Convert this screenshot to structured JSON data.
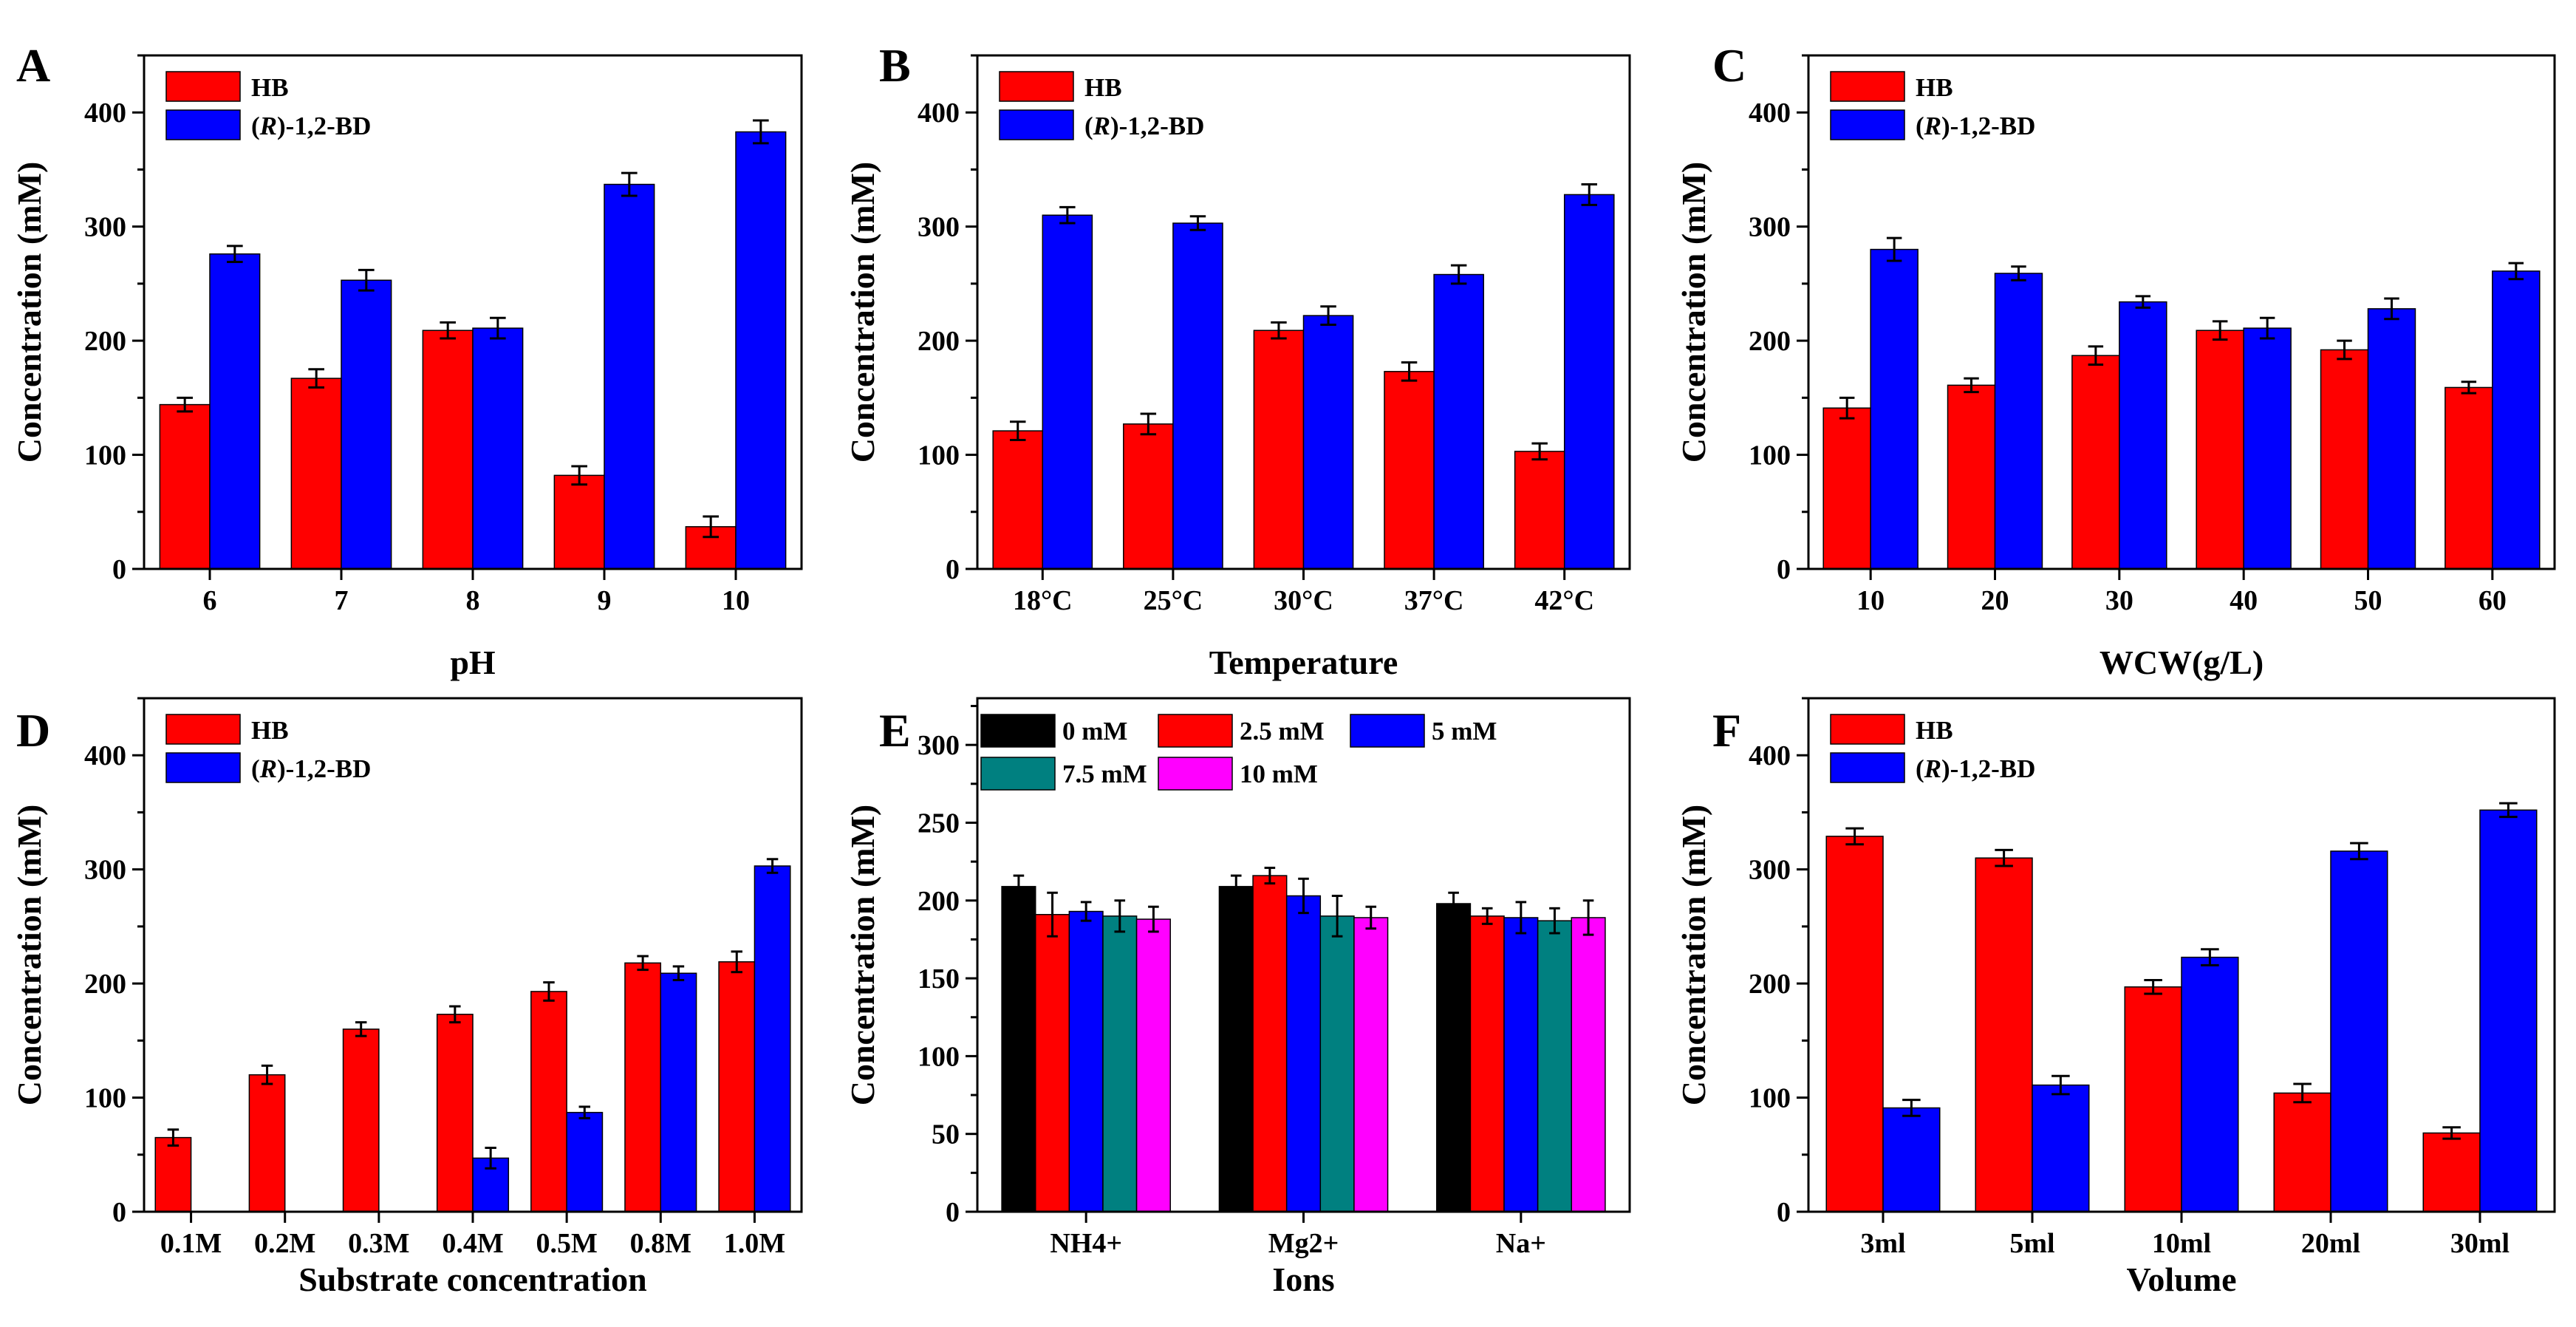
{
  "colors": {
    "HB": "#ff0000",
    "BD": "#0000ff",
    "black": "#000000",
    "red": "#ff0000",
    "blue": "#0000ff",
    "teal": "#008080",
    "magenta": "#ff00ff"
  },
  "chart_data": [
    {
      "panel": "A",
      "type": "bar",
      "xlabel": "pH",
      "ylabel": "Concentration (mM)",
      "ylim": [
        0,
        450
      ],
      "yticks": [
        0,
        100,
        200,
        300,
        400
      ],
      "categories": [
        "6",
        "7",
        "8",
        "9",
        "10"
      ],
      "legend": "top-left",
      "series": [
        {
          "name": "HB",
          "color": "HB",
          "values": [
            144,
            167,
            209,
            82,
            37
          ],
          "errors": [
            6,
            8,
            7,
            8,
            9
          ]
        },
        {
          "name": "(R)-1,2-BD",
          "name_prefix": "(",
          "name_italic": "R",
          "name_suffix": ")-1,2-BD",
          "color": "BD",
          "values": [
            276,
            253,
            211,
            337,
            383
          ],
          "errors": [
            7,
            9,
            9,
            10,
            10
          ]
        }
      ]
    },
    {
      "panel": "B",
      "type": "bar",
      "xlabel": "Temperature",
      "ylabel": "Concentration (mM)",
      "ylim": [
        0,
        450
      ],
      "yticks": [
        0,
        100,
        200,
        300,
        400
      ],
      "categories": [
        "18°C",
        "25°C",
        "30°C",
        "37°C",
        "42°C"
      ],
      "legend": "top-left",
      "series": [
        {
          "name": "HB",
          "color": "HB",
          "values": [
            121,
            127,
            209,
            173,
            103
          ],
          "errors": [
            8,
            9,
            7,
            8,
            7
          ]
        },
        {
          "name": "(R)-1,2-BD",
          "name_prefix": "(",
          "name_italic": "R",
          "name_suffix": ")-1,2-BD",
          "color": "BD",
          "values": [
            310,
            303,
            222,
            258,
            328
          ],
          "errors": [
            7,
            6,
            8,
            8,
            9
          ]
        }
      ]
    },
    {
      "panel": "C",
      "type": "bar",
      "xlabel": "WCW(g/L)",
      "ylabel": "Concentration (mM)",
      "ylim": [
        0,
        450
      ],
      "yticks": [
        0,
        100,
        200,
        300,
        400
      ],
      "categories": [
        "10",
        "20",
        "30",
        "40",
        "50",
        "60"
      ],
      "legend": "top-left",
      "series": [
        {
          "name": "HB",
          "color": "HB",
          "values": [
            141,
            161,
            187,
            209,
            192,
            159
          ],
          "errors": [
            9,
            6,
            8,
            8,
            8,
            5
          ]
        },
        {
          "name": "(R)-1,2-BD",
          "name_prefix": "(",
          "name_italic": "R",
          "name_suffix": ")-1,2-BD",
          "color": "BD",
          "values": [
            280,
            259,
            234,
            211,
            228,
            261
          ],
          "errors": [
            10,
            6,
            5,
            9,
            9,
            7
          ]
        }
      ]
    },
    {
      "panel": "D",
      "type": "bar",
      "xlabel": "Substrate concentration",
      "ylabel": "Concentration (mM)",
      "ylim": [
        0,
        450
      ],
      "yticks": [
        0,
        100,
        200,
        300,
        400
      ],
      "categories": [
        "0.1M",
        "0.2M",
        "0.3M",
        "0.4M",
        "0.5M",
        "0.8M",
        "1.0M"
      ],
      "legend": "top-left",
      "series": [
        {
          "name": "HB",
          "color": "HB",
          "values": [
            65,
            120,
            160,
            173,
            193,
            218,
            219
          ],
          "errors": [
            7,
            8,
            6,
            7,
            8,
            6,
            9
          ]
        },
        {
          "name": "(R)-1,2-BD",
          "name_prefix": "(",
          "name_italic": "R",
          "name_suffix": ")-1,2-BD",
          "color": "BD",
          "values": [
            0,
            0,
            0,
            47,
            87,
            209,
            303
          ],
          "errors": [
            0,
            0,
            0,
            9,
            5,
            6,
            6
          ]
        }
      ]
    },
    {
      "panel": "E",
      "type": "bar",
      "xlabel": "Ions",
      "ylabel": "Concentration (mM)",
      "ylim": [
        0,
        330
      ],
      "yticks": [
        0,
        50,
        100,
        150,
        200,
        250,
        300
      ],
      "categories": [
        "NH4+",
        "Mg2+",
        "Na+"
      ],
      "legend": "top-left",
      "series": [
        {
          "name": "0 mM",
          "color": "black",
          "values": [
            209,
            209,
            198
          ],
          "errors": [
            7,
            7,
            7
          ]
        },
        {
          "name": "2.5 mM",
          "color": "red",
          "values": [
            191,
            216,
            190
          ],
          "errors": [
            14,
            5,
            5
          ]
        },
        {
          "name": "5 mM",
          "color": "blue",
          "values": [
            193,
            203,
            189
          ],
          "errors": [
            6,
            11,
            10
          ]
        },
        {
          "name": "7.5 mM",
          "color": "teal",
          "values": [
            190,
            190,
            187
          ],
          "errors": [
            10,
            13,
            8
          ]
        },
        {
          "name": "10 mM",
          "color": "magenta",
          "values": [
            188,
            189,
            189
          ],
          "errors": [
            8,
            7,
            11
          ]
        }
      ]
    },
    {
      "panel": "F",
      "type": "bar",
      "xlabel": "Volume",
      "ylabel": "Concentration (mM)",
      "ylim": [
        0,
        450
      ],
      "yticks": [
        0,
        100,
        200,
        300,
        400
      ],
      "categories": [
        "3ml",
        "5ml",
        "10ml",
        "20ml",
        "30ml"
      ],
      "legend": "top-left",
      "series": [
        {
          "name": "HB",
          "color": "HB",
          "values": [
            329,
            310,
            197,
            104,
            69
          ],
          "errors": [
            7,
            7,
            6,
            8,
            5
          ]
        },
        {
          "name": "(R)-1,2-BD",
          "name_prefix": "(",
          "name_italic": "R",
          "name_suffix": ")-1,2-BD",
          "color": "BD",
          "values": [
            91,
            111,
            223,
            316,
            352
          ],
          "errors": [
            7,
            8,
            7,
            7,
            6
          ]
        }
      ]
    }
  ]
}
